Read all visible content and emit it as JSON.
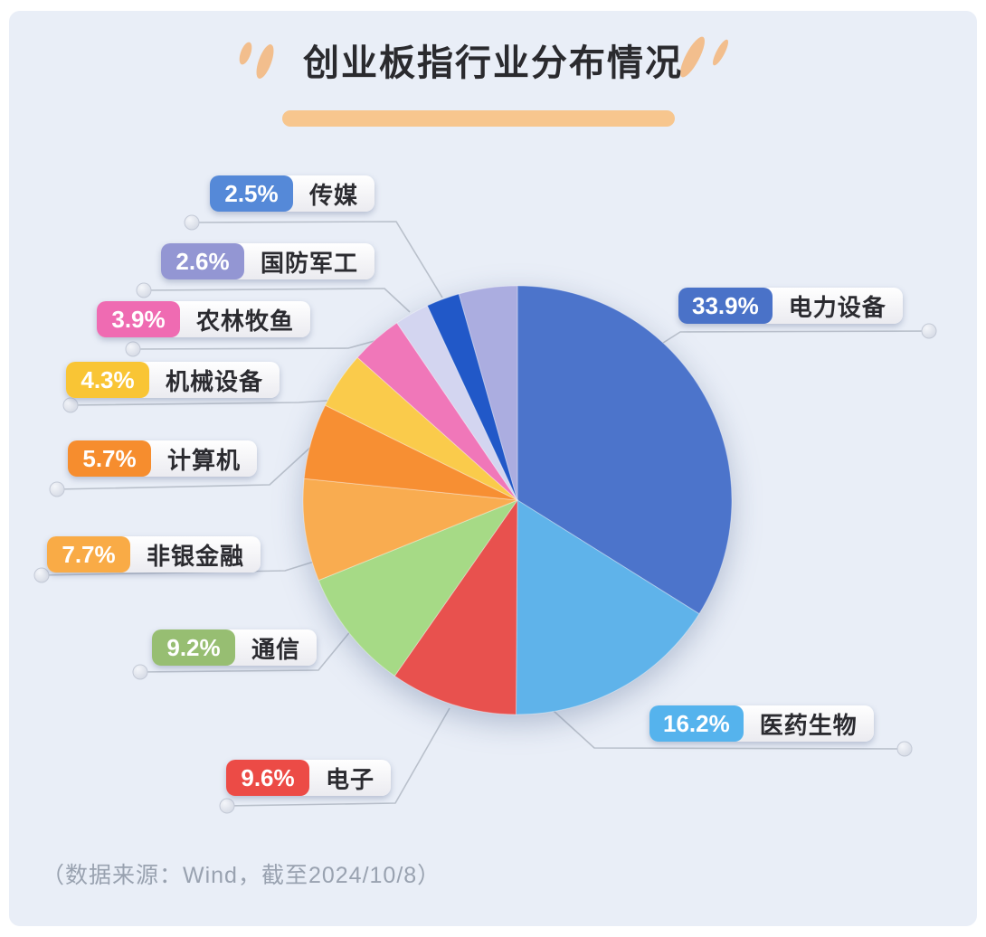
{
  "title": "创业板指行业分布情况",
  "title_accent_color": "#F7C68E",
  "source_note": "（数据来源：Wind，截至2024/10/8）",
  "chart_data": {
    "type": "pie",
    "title": "创业板指行业分布情况",
    "start_angle_deg": 0,
    "direction": "clockwise",
    "legend_position": "callout-labels",
    "slices": [
      {
        "name": "电力设备",
        "value": 33.9,
        "pct_label": "33.9%",
        "color": "#4C74CB",
        "label_color": "#4A72C8",
        "labeled": true
      },
      {
        "name": "医药生物",
        "value": 16.2,
        "pct_label": "16.2%",
        "color": "#5FB3EA",
        "label_color": "#55B3ED",
        "labeled": true
      },
      {
        "name": "电子",
        "value": 9.6,
        "pct_label": "9.6%",
        "color": "#E8514E",
        "label_color": "#EC4B46",
        "labeled": true
      },
      {
        "name": "通信",
        "value": 9.2,
        "pct_label": "9.2%",
        "color": "#A6DA86",
        "label_color": "#97BE72",
        "labeled": true
      },
      {
        "name": "非银金融",
        "value": 7.7,
        "pct_label": "7.7%",
        "color": "#F9AC50",
        "label_color": "#F9AB46",
        "labeled": true
      },
      {
        "name": "计算机",
        "value": 5.7,
        "pct_label": "5.7%",
        "color": "#F78F33",
        "label_color": "#F68D2E",
        "labeled": true
      },
      {
        "name": "机械设备",
        "value": 4.3,
        "pct_label": "4.3%",
        "color": "#FACB4B",
        "label_color": "#F9C535",
        "labeled": true
      },
      {
        "name": "农林牧鱼",
        "value": 3.9,
        "pct_label": "3.9%",
        "color": "#F077B9",
        "label_color": "#EF6BB2",
        "labeled": true
      },
      {
        "name": "国防军工",
        "value": 2.6,
        "pct_label": "2.6%",
        "color": "#D3D5F0",
        "label_color": "#9396D3",
        "labeled": true
      },
      {
        "name": "传媒",
        "value": 2.5,
        "pct_label": "2.5%",
        "color": "#2158C8",
        "label_color": "#5589D8",
        "labeled": true
      },
      {
        "name": "",
        "value": 4.4,
        "pct_label": "",
        "color": "#ABADE0",
        "labeled": false
      }
    ]
  }
}
